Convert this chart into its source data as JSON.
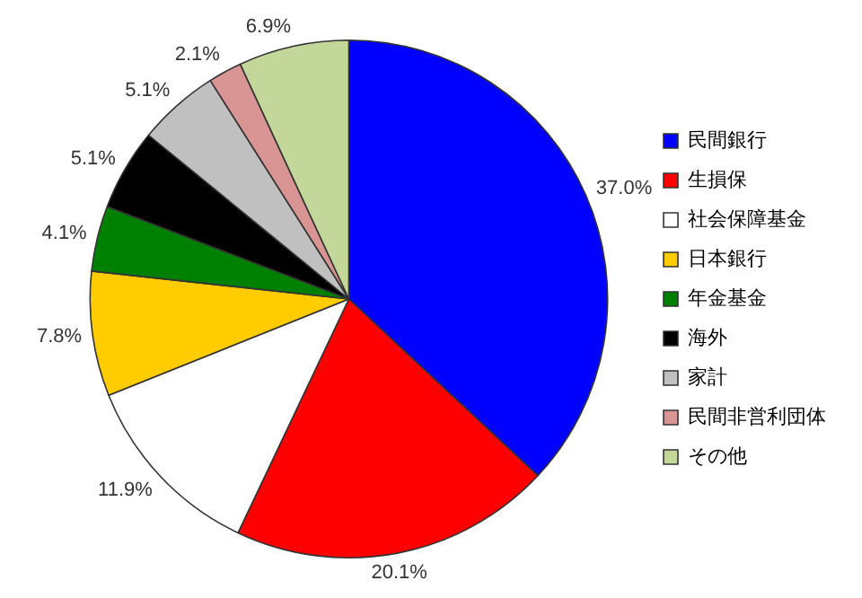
{
  "chart_data": {
    "type": "pie",
    "categories": [
      "民間銀行",
      "生損保",
      "社会保障基金",
      "日本銀行",
      "年金基金",
      "海外",
      "家計",
      "民間非営利団体",
      "その他"
    ],
    "values": [
      37.0,
      20.1,
      11.9,
      7.8,
      4.1,
      5.1,
      5.1,
      2.1,
      6.9
    ],
    "value_labels": [
      "37.0%",
      "20.1%",
      "11.9%",
      "7.8%",
      "4.1%",
      "5.1%",
      "5.1%",
      "2.1%",
      "6.9%"
    ],
    "colors": [
      "#0000ff",
      "#ff0000",
      "#ffffff",
      "#ffcc00",
      "#008000",
      "#000000",
      "#c0c0c0",
      "#d99594",
      "#c4d79b"
    ],
    "legend": "right"
  }
}
